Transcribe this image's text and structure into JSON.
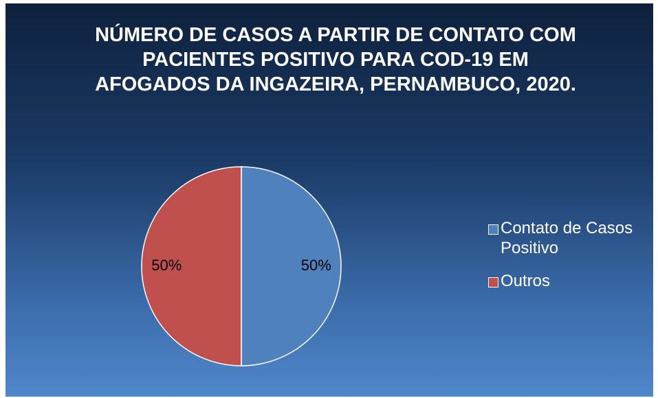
{
  "chart_data": {
    "type": "pie",
    "title": "NÚMERO DE CASOS A PARTIR DE CONTATO COM PACIENTES POSITIVO PARA COD-19 EM AFOGADOS DA INGAZEIRA, PERNAMBUCO, 2020.",
    "categories": [
      "Contato de Casos Positivo",
      "Outros"
    ],
    "values": [
      50,
      50
    ],
    "value_labels": [
      "50%",
      "50%"
    ],
    "colors": [
      "#4f81bd",
      "#c0504d"
    ],
    "legend": "right"
  }
}
